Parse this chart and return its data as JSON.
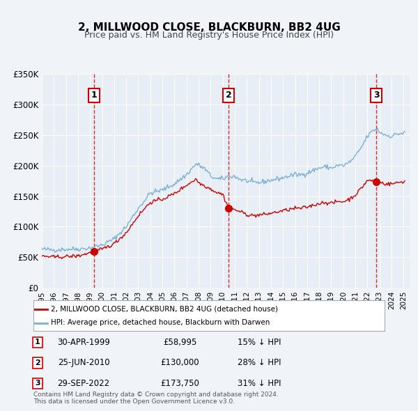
{
  "title": "2, MILLWOOD CLOSE, BLACKBURN, BB2 4UG",
  "subtitle": "Price paid vs. HM Land Registry's House Price Index (HPI)",
  "background_color": "#f0f4f8",
  "plot_bg_color": "#e8eef5",
  "ylabel": "",
  "ylim": [
    0,
    350000
  ],
  "yticks": [
    0,
    50000,
    100000,
    150000,
    200000,
    250000,
    300000,
    350000
  ],
  "ytick_labels": [
    "£0",
    "£50K",
    "£100K",
    "£150K",
    "£200K",
    "£250K",
    "£300K",
    "£350K"
  ],
  "sale_dates": [
    "1999-04-30",
    "2010-06-25",
    "2022-09-29"
  ],
  "sale_prices": [
    58995,
    130000,
    173750
  ],
  "sale_labels": [
    "1",
    "2",
    "3"
  ],
  "vline_color": "#cc0000",
  "sale_marker_color": "#cc0000",
  "hpi_line_color": "#7ab0d4",
  "price_line_color": "#cc0000",
  "legend_box_color": "#ffffff",
  "legend_label_price": "2, MILLWOOD CLOSE, BLACKBURN, BB2 4UG (detached house)",
  "legend_label_hpi": "HPI: Average price, detached house, Blackburn with Darwen",
  "table_rows": [
    {
      "num": "1",
      "date": "30-APR-1999",
      "price": "£58,995",
      "hpi": "15% ↓ HPI"
    },
    {
      "num": "2",
      "date": "25-JUN-2010",
      "price": "£130,000",
      "hpi": "28% ↓ HPI"
    },
    {
      "num": "3",
      "date": "29-SEP-2022",
      "price": "£173,750",
      "hpi": "31% ↓ HPI"
    }
  ],
  "footer": "Contains HM Land Registry data © Crown copyright and database right 2024.\nThis data is licensed under the Open Government Licence v3.0.",
  "xstart": 1995.0,
  "xend": 2025.5
}
